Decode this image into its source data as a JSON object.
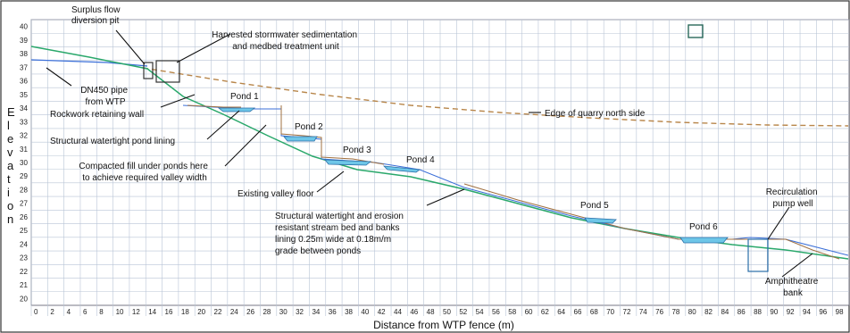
{
  "x_axis": {
    "title": "Distance from WTP fence (m)",
    "ticks": [
      "0",
      "2",
      "4",
      "6",
      "8",
      "10",
      "12",
      "14",
      "16",
      "18",
      "20",
      "22",
      "24",
      "26",
      "28",
      "30",
      "32",
      "34",
      "36",
      "38",
      "40",
      "42",
      "44",
      "46",
      "48",
      "50",
      "52",
      "54",
      "56",
      "58",
      "60",
      "62",
      "64",
      "66",
      "68",
      "70",
      "72",
      "74",
      "76",
      "78",
      "80",
      "82",
      "84",
      "86",
      "88",
      "90",
      "92",
      "94",
      "96",
      "98"
    ]
  },
  "y_axis": {
    "title_letters": [
      "E",
      "l",
      "e",
      "v",
      "a",
      "t",
      "i",
      "o",
      "n"
    ],
    "ticks": [
      "40",
      "39",
      "38",
      "37",
      "36",
      "35",
      "34",
      "33",
      "32",
      "31",
      "30",
      "29",
      "28",
      "27",
      "26",
      "25",
      "24",
      "23",
      "22",
      "21",
      "20"
    ]
  },
  "labels": {
    "surplus_pit": [
      "Surplus flow",
      "diversion pit"
    ],
    "sedimentation": [
      "Harvested stormwater sedimentation",
      "and medbed treatment unit"
    ],
    "dn450": [
      "DN450 pipe",
      "from WTP"
    ],
    "rockwork": "Rockwork  retaining wall",
    "lining": "Structural watertight pond lining",
    "fill": [
      "Compacted fill under ponds here",
      "to achieve required valley width"
    ],
    "valley_floor": "Existing valley floor",
    "stream_bed": [
      "Structural watertight and erosion",
      "resistant stream bed and banks",
      "lining 0.25m wide at 0.18m/m",
      "grade between ponds"
    ],
    "quarry_edge": "Edge of quarry north side",
    "recirculation": [
      "Recirculation",
      "pump well"
    ],
    "amphitheatre": [
      "Amphitheatre",
      "bank"
    ],
    "pond1": "Pond 1",
    "pond2": "Pond 2",
    "pond3": "Pond 3",
    "pond4": "Pond 4",
    "pond5": "Pond 5",
    "pond6": "Pond 6"
  },
  "colors": {
    "valley_floor": "#2aa86b",
    "pipe": "#3b6fd8",
    "quarry_edge": "#b8864a",
    "fill": "#a07040",
    "water": "#6ec6e8",
    "grid": "#b9c4d6"
  }
}
